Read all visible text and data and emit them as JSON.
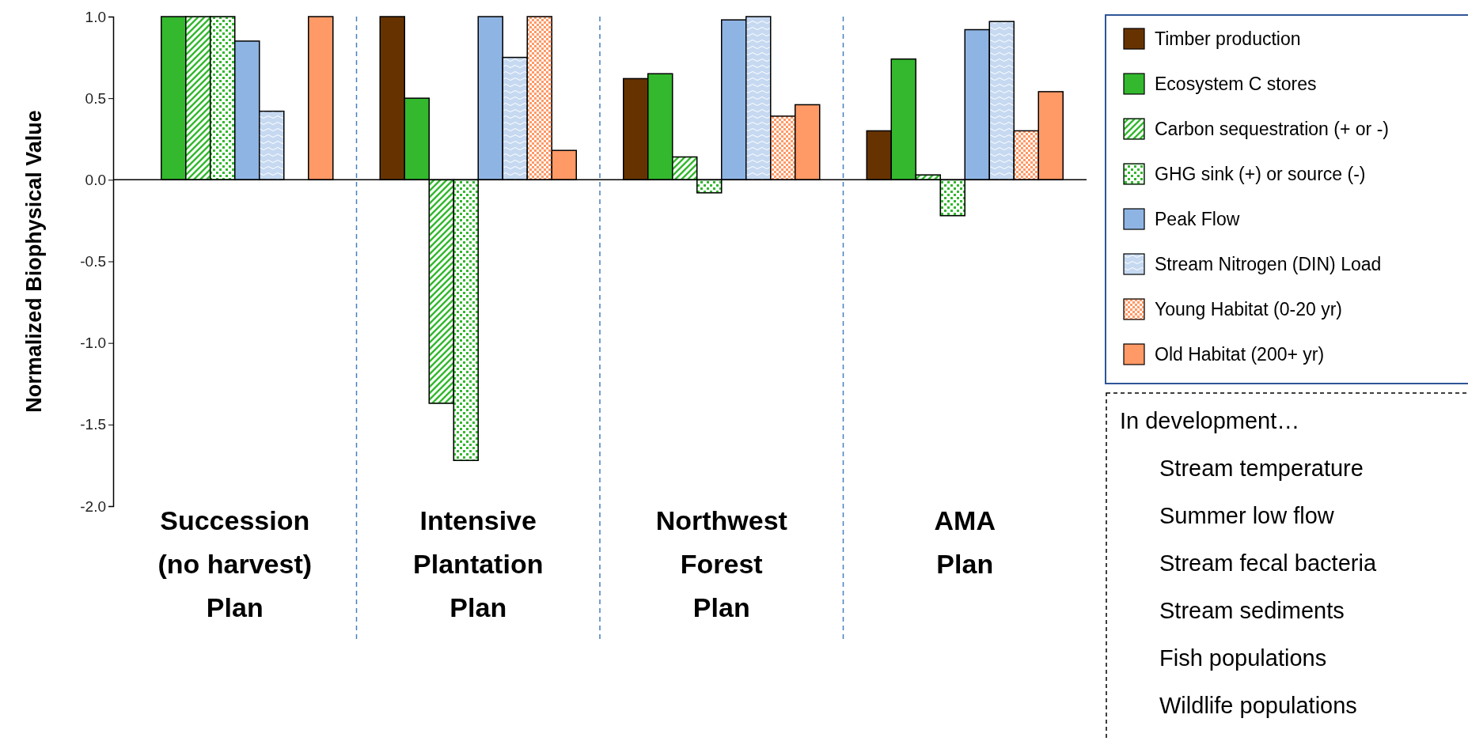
{
  "chart_data": {
    "type": "bar",
    "ylabel": "Normalized Biophysical Value",
    "categories": [
      "Succession\n(no harvest)\nPlan",
      "Intensive\nPlantation\nPlan",
      "Northwest\nForest\nPlan",
      "AMA\nPlan"
    ],
    "series": [
      {
        "name": "Timber production",
        "color": "#663300",
        "values": [
          0,
          1.0,
          0.62,
          0.3
        ]
      },
      {
        "name": "Ecosystem C stores",
        "color": "#33b82e",
        "values": [
          1.0,
          0.5,
          0.65,
          0.74
        ]
      },
      {
        "name": "Carbon sequestration (+ or -)",
        "color": "#33b82e",
        "values": [
          1.0,
          -1.37,
          0.14,
          0.03
        ]
      },
      {
        "name": "GHG sink (+) or source (-)",
        "color": "#33b82e",
        "values": [
          1.0,
          -1.72,
          -0.08,
          -0.22
        ]
      },
      {
        "name": "Peak Flow",
        "color": "#8eb4e3",
        "values": [
          0.85,
          1.0,
          0.98,
          0.92
        ]
      },
      {
        "name": "Stream Nitrogen (DIN) Load",
        "color": "#c6d9f1",
        "values": [
          0.42,
          0.75,
          1.0,
          0.97
        ]
      },
      {
        "name": "Young Habitat (0-20 yr)",
        "color": "#ff9966",
        "values": [
          0,
          1.0,
          0.39,
          0.3
        ]
      },
      {
        "name": "Old Habitat (200+ yr)",
        "color": "#ff9966",
        "values": [
          1.0,
          0.18,
          0.46,
          0.54
        ]
      }
    ],
    "ylim": [
      -2,
      1
    ],
    "yticks": [
      {
        "value": -2,
        "label": "-2.0"
      },
      {
        "value": -1.5,
        "label": "-1.5"
      },
      {
        "value": -1,
        "label": "-1.0"
      },
      {
        "value": -0.5,
        "label": "-0.5"
      },
      {
        "value": 0,
        "label": "0.0"
      },
      {
        "value": 0.5,
        "label": "0.5"
      },
      {
        "value": 1,
        "label": "1.0"
      }
    ],
    "grid": false,
    "legend": "right",
    "annotations": [
      "In development…",
      "Stream temperature",
      "Summer low flow",
      "Stream fecal bacteria",
      "Stream sediments",
      "Fish populations",
      "Wildlife populations"
    ]
  }
}
